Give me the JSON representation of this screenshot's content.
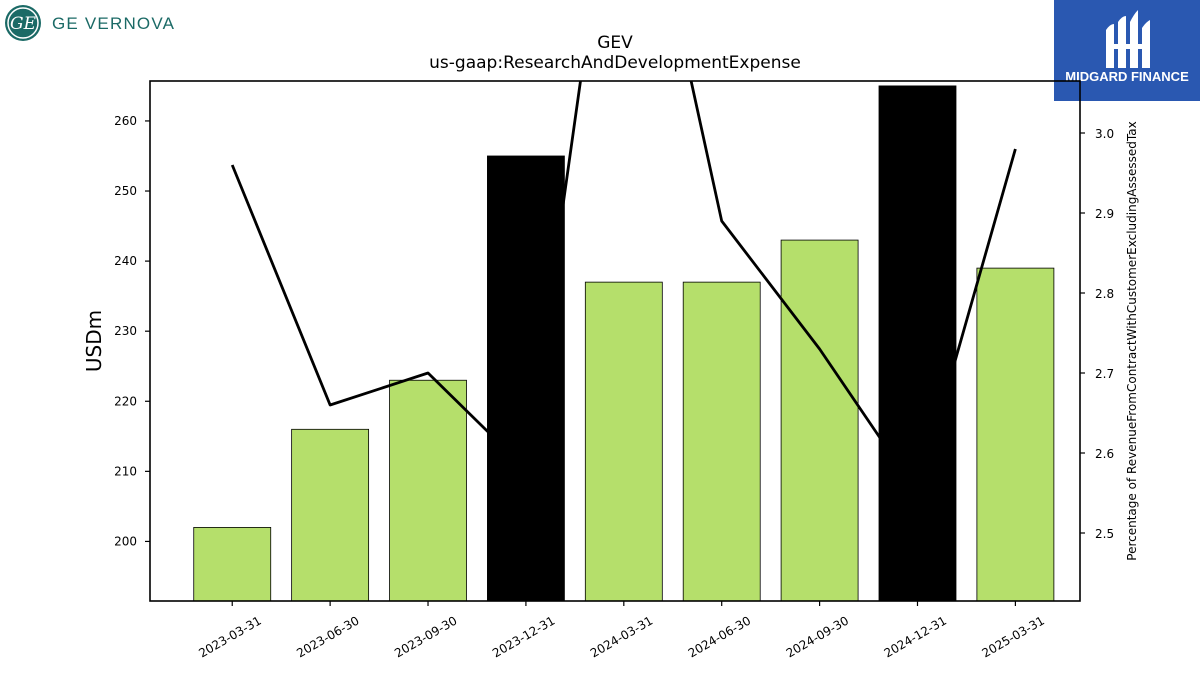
{
  "header": {
    "company_logo_text": "GE VERNOVA",
    "partner_logo_text": "MIDGARD FINANCE"
  },
  "colors": {
    "bar_normal": "#b5df6b",
    "bar_highlight": "#000000",
    "line": "#000000",
    "ge_teal": "#1b6a66",
    "midgard_blue": "#2a58b1"
  },
  "icons": {
    "company_logo": "ge-monogram-icon",
    "partner_logo": "midgard-m-icon"
  },
  "chart_data": {
    "type": "bar",
    "title": "GEV",
    "subtitle": "us-gaap:ResearchAndDevelopmentExpense",
    "ylabel": "USDm",
    "y2label": "Percentage of RevenueFromContractWithCustomerExcludingAssessedTax",
    "categories": [
      "2023-03-31",
      "2023-06-30",
      "2023-09-30",
      "2023-12-31",
      "2024-03-31",
      "2024-06-30",
      "2024-09-30",
      "2024-12-31",
      "2025-03-31"
    ],
    "values": [
      202,
      216,
      223,
      255,
      237,
      237,
      243,
      265,
      239
    ],
    "highlight": [
      false,
      false,
      false,
      true,
      false,
      false,
      false,
      true,
      false
    ],
    "ylim": [
      191.5,
      265.7
    ],
    "yticks": [
      200,
      210,
      220,
      230,
      240,
      250,
      260
    ],
    "line_series": {
      "axis": "right",
      "values": [
        2.96,
        2.66,
        2.7,
        2.58,
        3.45,
        2.89,
        2.73,
        2.55,
        2.98
      ]
    },
    "y2lim": [
      2.415,
      3.065
    ],
    "y2ticks": [
      "2.5",
      "2.6",
      "2.7",
      "2.8",
      "2.9",
      "3.0"
    ],
    "grid": false,
    "legend": "none"
  }
}
